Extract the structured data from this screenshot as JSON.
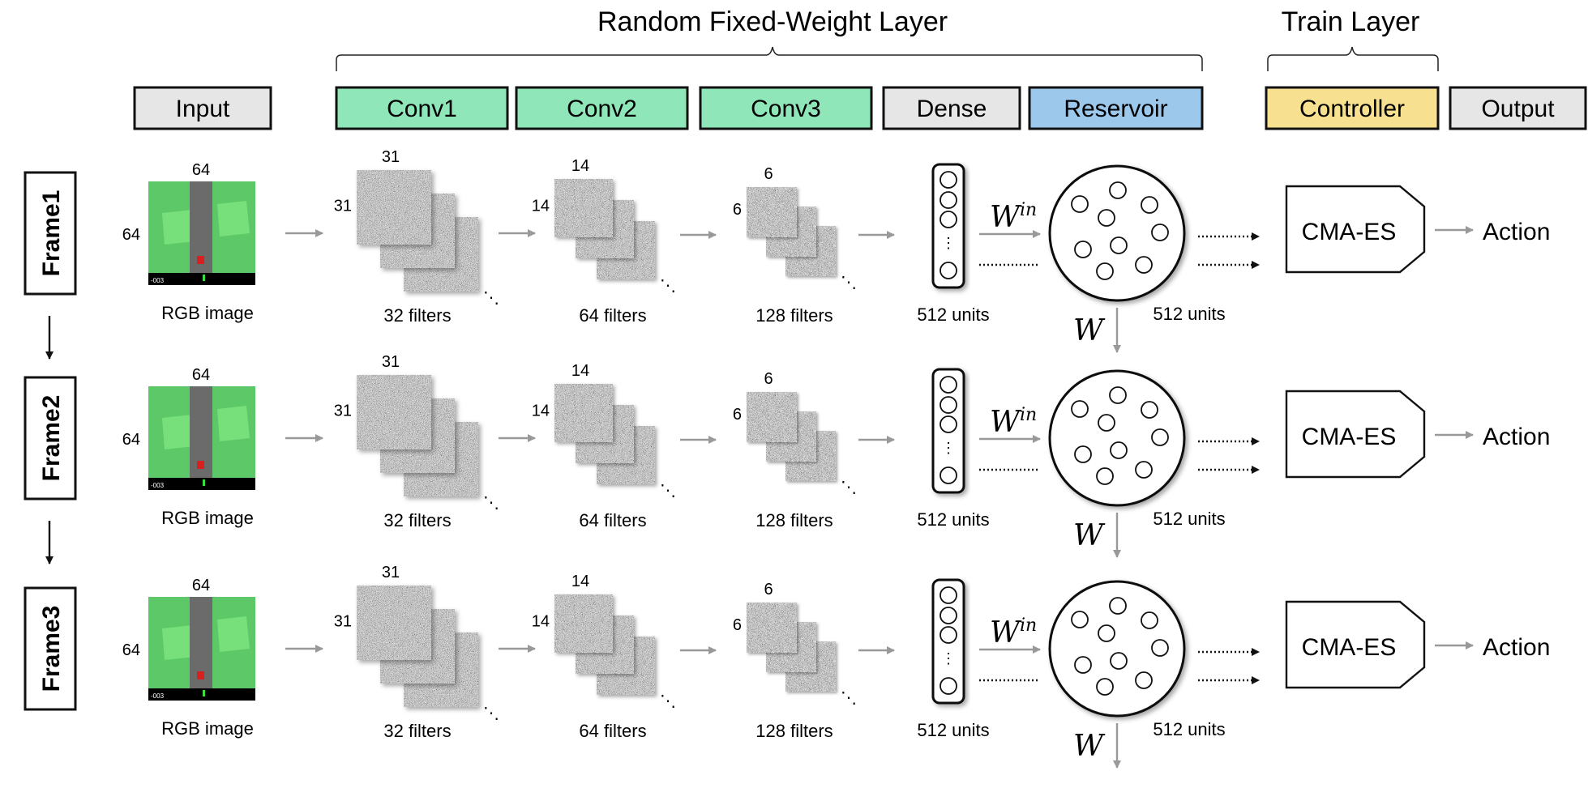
{
  "title_random": "Random Fixed-Weight Layer",
  "title_train": "Train Layer",
  "headers": [
    {
      "label": "Input",
      "color": "#e6e6e6"
    },
    {
      "label": "Conv1",
      "color": "#8fe6b8"
    },
    {
      "label": "Conv2",
      "color": "#8fe6b8"
    },
    {
      "label": "Conv3",
      "color": "#8fe6b8"
    },
    {
      "label": "Dense",
      "color": "#e6e6e6"
    },
    {
      "label": "Reservoir",
      "color": "#9cc8ec"
    },
    {
      "label": "Controller",
      "color": "#f7e08f"
    },
    {
      "label": "Output",
      "color": "#e6e6e6"
    }
  ],
  "frames": [
    {
      "label": "Frame1"
    },
    {
      "label": "Frame2"
    },
    {
      "label": "Frame3"
    }
  ],
  "input": {
    "width_label": "64",
    "height_label": "64",
    "caption": "RGB image",
    "counter": "-003"
  },
  "conv_layers": [
    {
      "size_label": "31",
      "caption": "32 filters"
    },
    {
      "size_label": "14",
      "caption": "64 filters"
    },
    {
      "size_label": "6",
      "caption": "128 filters"
    }
  ],
  "dense": {
    "caption": "512 units",
    "ellipsis": "⋮"
  },
  "reservoir": {
    "caption": "512 units",
    "w_in": "W",
    "w_in_sup": "in",
    "w_rec": "W"
  },
  "controller": {
    "label": "CMA-ES"
  },
  "output": {
    "label": "Action"
  },
  "colors": {
    "grass": "#5cc867",
    "road": "#6b6b6b",
    "tile": "#77e07a",
    "car": "#d92020",
    "arrow": "#999999"
  }
}
